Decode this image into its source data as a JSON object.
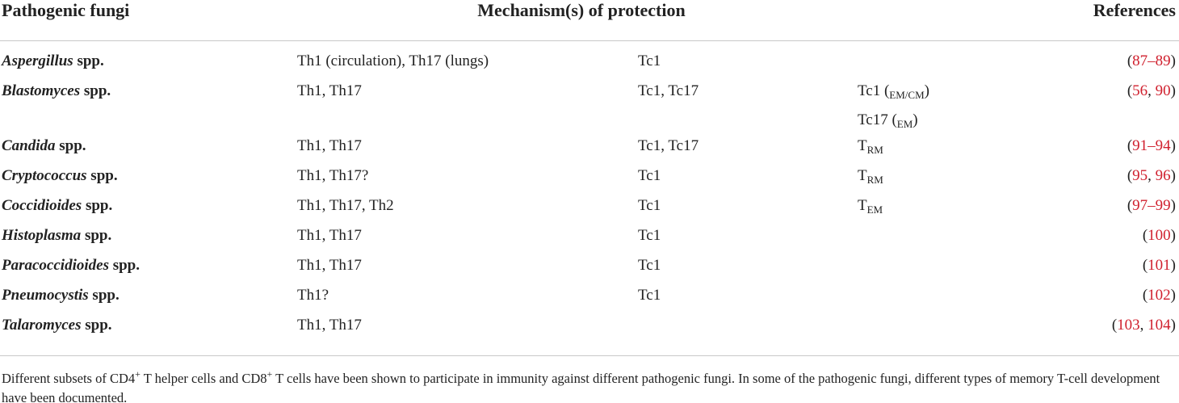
{
  "table": {
    "headers": [
      "Pathogenic fungi",
      "Mechanism(s) of protection",
      "References"
    ],
    "rows": [
      {
        "fungus": [
          {
            "text": "Aspergillus",
            "style": "italic"
          },
          {
            "text": " spp."
          }
        ],
        "cd4": "Th1 (circulation), Th17 (lungs)",
        "cd8": "Tc1",
        "memory": [],
        "references": [
          {
            "text": "("
          },
          {
            "text": "87–89",
            "style": "link"
          },
          {
            "text": ")"
          }
        ]
      },
      {
        "fungus": [
          {
            "text": "Blastomyces",
            "style": "italic"
          },
          {
            "text": " spp."
          }
        ],
        "cd4": "Th1, Th17",
        "cd8": "Tc1, Tc17",
        "memory": [
          [
            {
              "text": "Tc1 ("
            },
            {
              "text": "EM/CM",
              "style": "sub"
            },
            {
              "text": ")"
            }
          ],
          [
            {
              "text": "Tc17 ("
            },
            {
              "text": "EM",
              "style": "sub"
            },
            {
              "text": ")"
            }
          ]
        ],
        "references": [
          {
            "text": "("
          },
          {
            "text": "56",
            "style": "link"
          },
          {
            "text": ", "
          },
          {
            "text": "90",
            "style": "link"
          },
          {
            "text": ")"
          }
        ]
      },
      {
        "fungus": [
          {
            "text": "Candida",
            "style": "italic"
          },
          {
            "text": " spp."
          }
        ],
        "cd4": "Th1, Th17",
        "cd8": "Tc1, Tc17",
        "memory": [
          [
            {
              "text": "T"
            },
            {
              "text": "RM",
              "style": "sub"
            }
          ]
        ],
        "references": [
          {
            "text": "("
          },
          {
            "text": "91–94",
            "style": "link"
          },
          {
            "text": ")"
          }
        ]
      },
      {
        "fungus": [
          {
            "text": "Cryptococcus",
            "style": "italic"
          },
          {
            "text": " spp."
          }
        ],
        "cd4": "Th1, Th17?",
        "cd8": "Tc1",
        "memory": [
          [
            {
              "text": "T"
            },
            {
              "text": "RM",
              "style": "sub"
            }
          ]
        ],
        "references": [
          {
            "text": "("
          },
          {
            "text": "95",
            "style": "link"
          },
          {
            "text": ", "
          },
          {
            "text": "96",
            "style": "link"
          },
          {
            "text": ")"
          }
        ]
      },
      {
        "fungus": [
          {
            "text": "Coccidioides",
            "style": "italic"
          },
          {
            "text": " spp."
          }
        ],
        "cd4": "Th1, Th17, Th2",
        "cd8": "Tc1",
        "memory": [
          [
            {
              "text": "T"
            },
            {
              "text": "EM",
              "style": "sub"
            }
          ]
        ],
        "references": [
          {
            "text": "("
          },
          {
            "text": "97–99",
            "style": "link"
          },
          {
            "text": ")"
          }
        ]
      },
      {
        "fungus": [
          {
            "text": "Histoplasma",
            "style": "italic"
          },
          {
            "text": " spp."
          }
        ],
        "cd4": "Th1, Th17",
        "cd8": "Tc1",
        "memory": [],
        "references": [
          {
            "text": "("
          },
          {
            "text": "100",
            "style": "link"
          },
          {
            "text": ")"
          }
        ]
      },
      {
        "fungus": [
          {
            "text": "Paracoccidioides",
            "style": "italic"
          },
          {
            "text": " spp."
          }
        ],
        "cd4": "Th1, Th17",
        "cd8": "Tc1",
        "memory": [],
        "references": [
          {
            "text": "("
          },
          {
            "text": "101",
            "style": "link"
          },
          {
            "text": ")"
          }
        ]
      },
      {
        "fungus": [
          {
            "text": "Pneumocystis",
            "style": "italic"
          },
          {
            "text": " spp."
          }
        ],
        "cd4": "Th1?",
        "cd8": "Tc1",
        "memory": [],
        "references": [
          {
            "text": "("
          },
          {
            "text": "102",
            "style": "link"
          },
          {
            "text": ")"
          }
        ]
      },
      {
        "fungus": [
          {
            "text": "Talaromyces",
            "style": "italic"
          },
          {
            "text": " spp."
          }
        ],
        "cd4": "Th1, Th17",
        "cd8": null,
        "memory": [],
        "references": [
          {
            "text": "("
          },
          {
            "text": "103",
            "style": "link"
          },
          {
            "text": ", "
          },
          {
            "text": "104",
            "style": "link"
          },
          {
            "text": ")"
          }
        ]
      }
    ]
  },
  "footnote": [
    {
      "text": "Different subsets of CD4"
    },
    {
      "text": "+",
      "style": "sup"
    },
    {
      "text": " T helper cells and CD8"
    },
    {
      "text": "+",
      "style": "sup"
    },
    {
      "text": " T cells have been shown to participate in immunity against different pathogenic fungi. In some of the pathogenic fungi, different types of memory T-cell development have been documented."
    }
  ]
}
